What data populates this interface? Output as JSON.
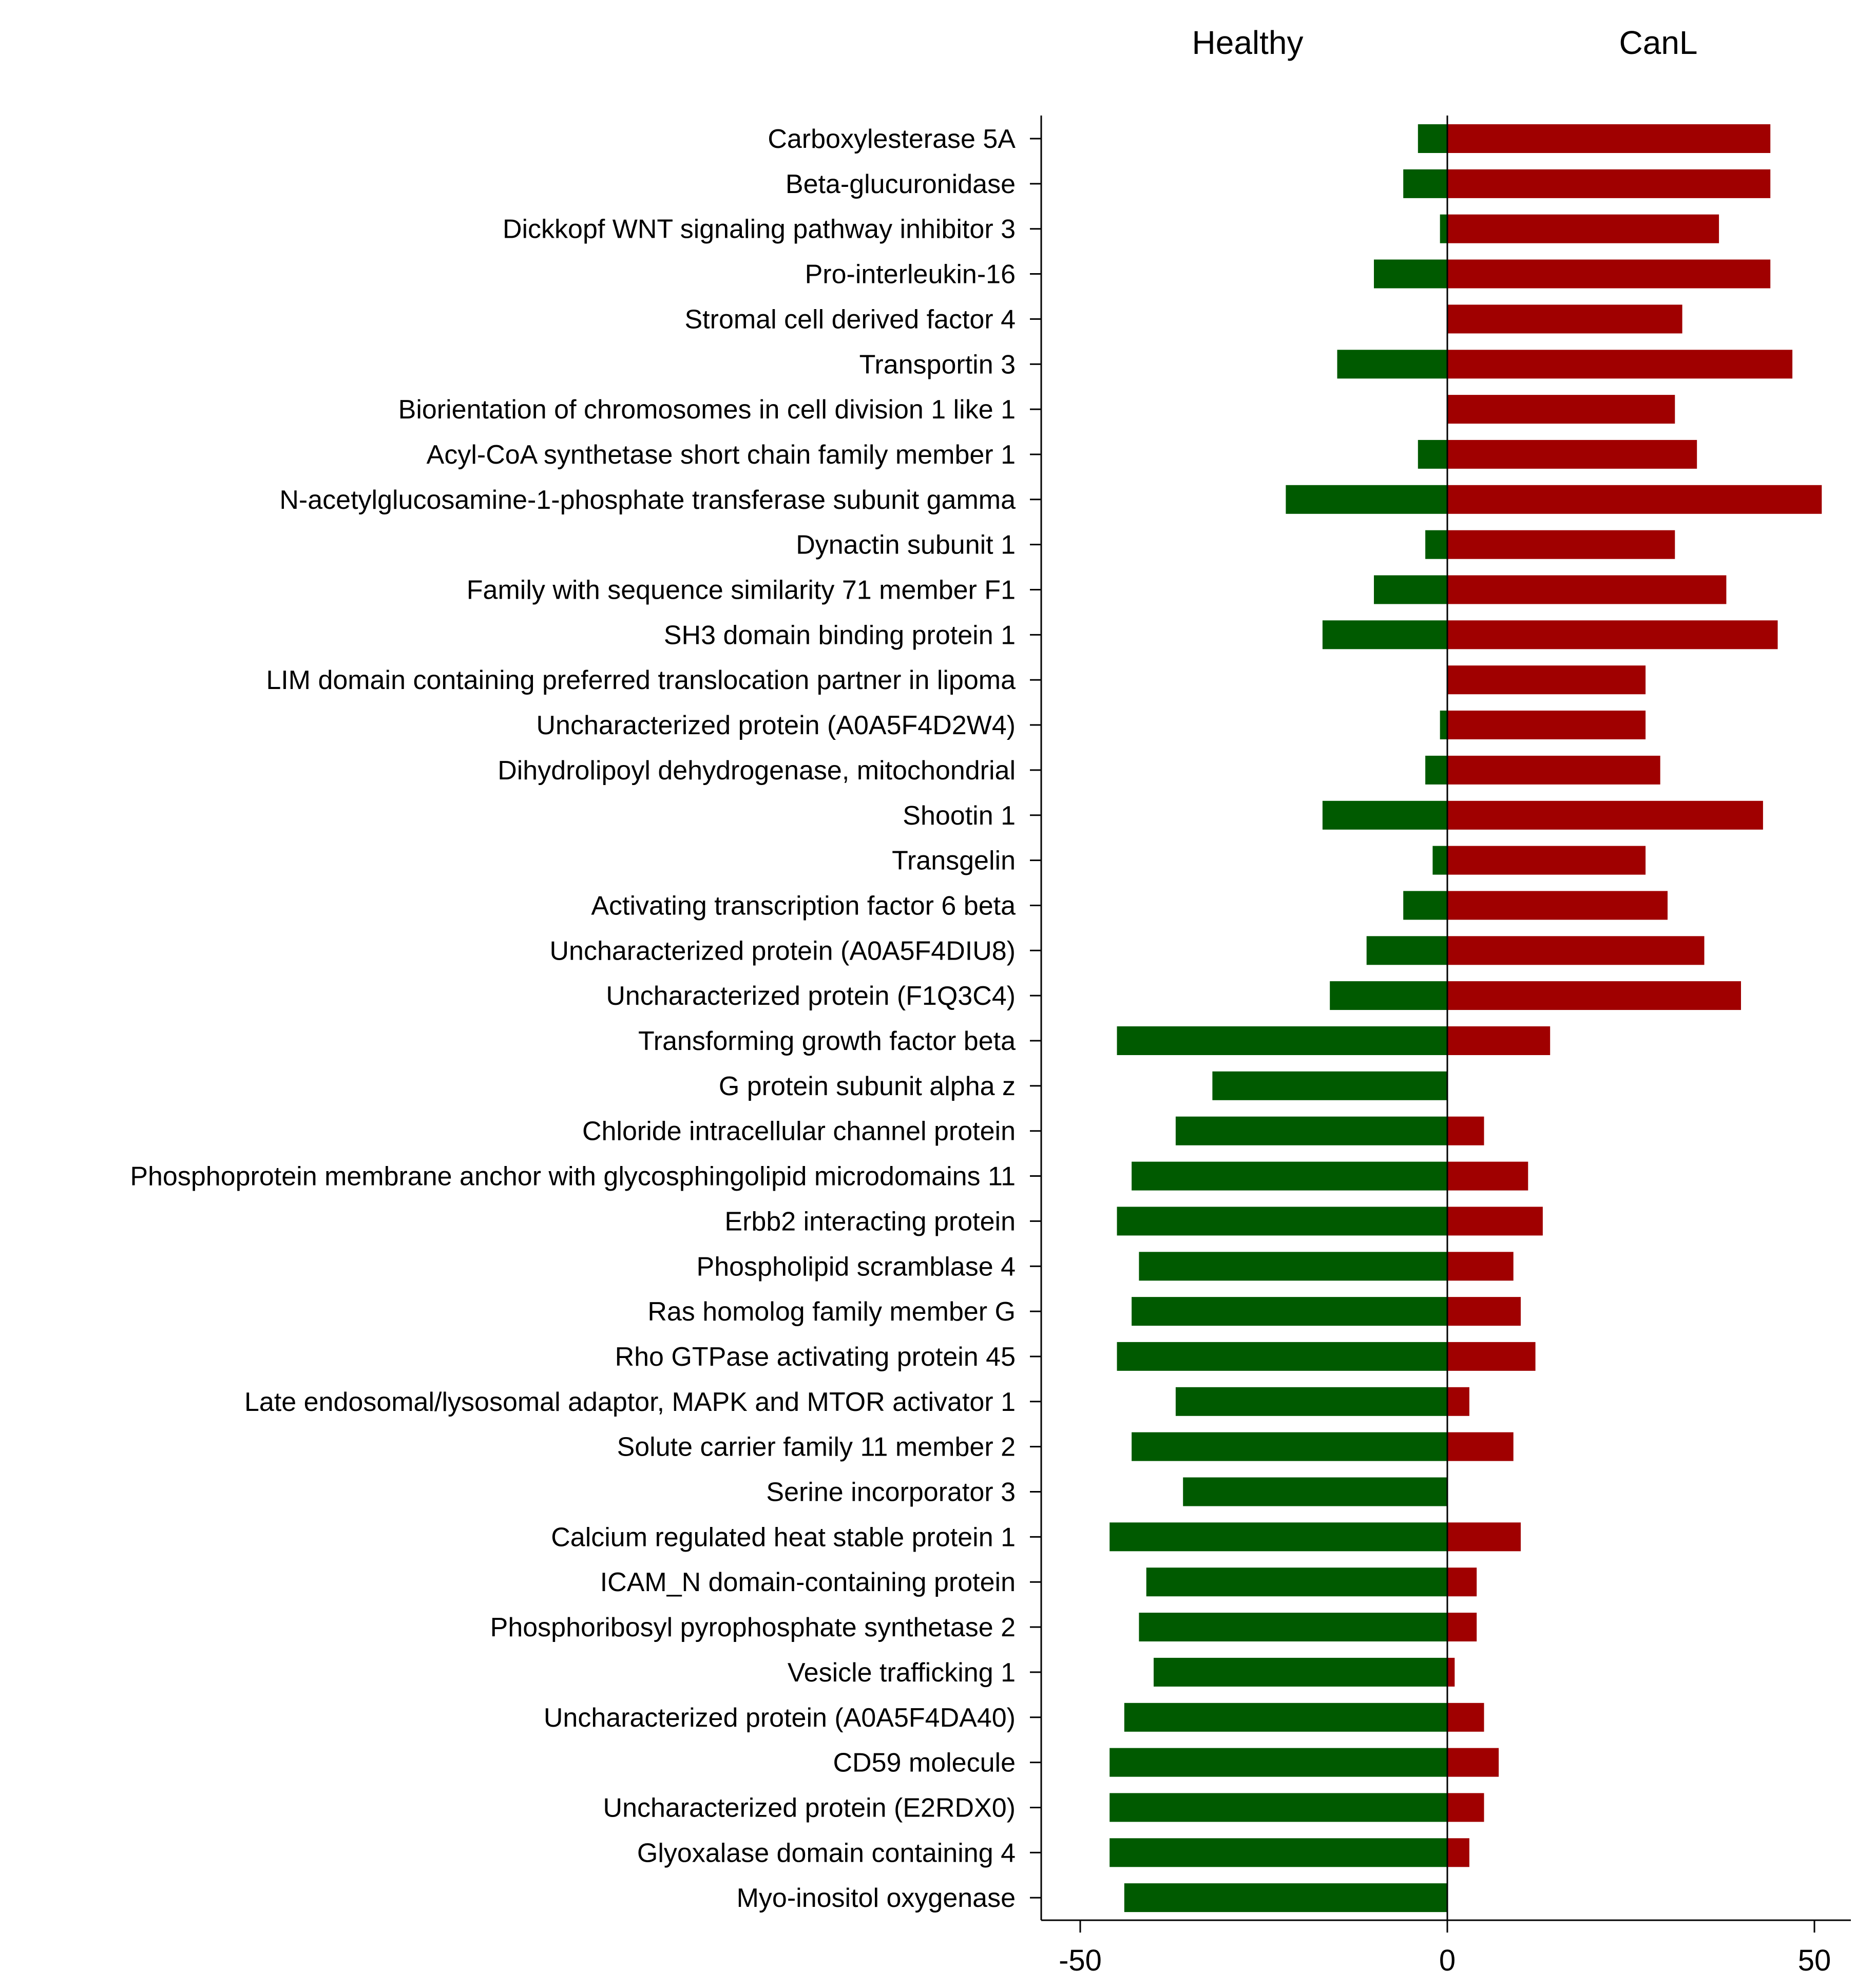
{
  "chart_data": {
    "type": "bar",
    "orientation": "horizontal",
    "title": "",
    "xlabel": "",
    "ylabel": "",
    "xlim": [
      -55,
      55
    ],
    "xticks": [
      -50,
      0,
      50
    ],
    "grid": false,
    "legend": "none",
    "group_labels": {
      "left": "Healthy",
      "right": "CanL"
    },
    "categories": [
      "Carboxylesterase 5A",
      "Beta-glucuronidase",
      "Dickkopf WNT signaling pathway inhibitor 3",
      "Pro-interleukin-16",
      "Stromal cell derived factor 4",
      "Transportin 3",
      "Biorientation of chromosomes in cell division 1 like 1",
      "Acyl-CoA synthetase short chain family member 1",
      "N-acetylglucosamine-1-phosphate transferase subunit gamma",
      "Dynactin subunit 1",
      "Family with sequence similarity 71 member F1",
      "SH3 domain binding protein 1",
      "LIM domain containing preferred translocation partner in lipoma",
      "Uncharacterized protein (A0A5F4D2W4)",
      "Dihydrolipoyl dehydrogenase, mitochondrial",
      "Shootin 1",
      "Transgelin",
      "Activating transcription factor 6 beta",
      "Uncharacterized protein (A0A5F4DIU8)",
      "Uncharacterized protein (F1Q3C4)",
      "Transforming growth factor beta",
      "G protein subunit alpha z",
      "Chloride intracellular channel protein",
      "Phosphoprotein membrane anchor with glycosphingolipid microdomains 11",
      "Erbb2 interacting protein",
      "Phospholipid scramblase 4",
      "Ras homolog family member G",
      "Rho GTPase activating protein 45",
      "Late endosomal/lysosomal adaptor, MAPK and MTOR activator 1",
      "Solute carrier family 11 member 2",
      "Serine incorporator 3",
      "Calcium regulated heat stable protein 1",
      "ICAM_N domain-containing protein",
      "Phosphoribosyl pyrophosphate synthetase 2",
      "Vesicle trafficking 1",
      "Uncharacterized protein (A0A5F4DA40)",
      "CD59 molecule",
      "Uncharacterized protein (E2RDX0)",
      "Glyoxalase domain containing 4",
      "Myo-inositol oxygenase"
    ],
    "series": [
      {
        "name": "Healthy",
        "color": "#005a00",
        "values": [
          -4,
          -6,
          -1,
          -10,
          0,
          -15,
          0,
          -4,
          -22,
          -3,
          -10,
          -17,
          0,
          -1,
          -3,
          -17,
          -2,
          -6,
          -11,
          -16,
          -45,
          -32,
          -37,
          -43,
          -45,
          -42,
          -43,
          -45,
          -37,
          -43,
          -36,
          -46,
          -41,
          -42,
          -40,
          -44,
          -46,
          -46,
          -46,
          -44
        ]
      },
      {
        "name": "CanL",
        "color": "#a00000",
        "values": [
          44,
          44,
          37,
          44,
          32,
          47,
          31,
          34,
          51,
          31,
          38,
          45,
          27,
          27,
          29,
          43,
          27,
          30,
          35,
          40,
          14,
          0,
          5,
          11,
          13,
          9,
          10,
          12,
          3,
          9,
          0,
          10,
          4,
          4,
          1,
          5,
          7,
          5,
          3,
          0
        ]
      }
    ]
  }
}
